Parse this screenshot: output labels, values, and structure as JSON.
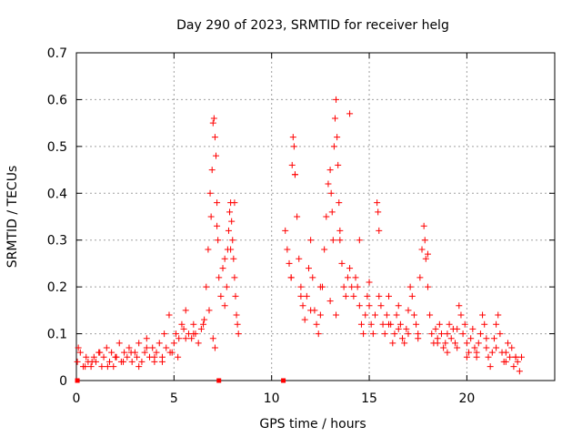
{
  "chart_data": {
    "type": "scatter",
    "title": "Day 290 of 2023, SRMTID for receiver helg",
    "xlabel": "GPS time / hours",
    "ylabel": "SRMTID / TECUs",
    "xlim": [
      0,
      24.5
    ],
    "ylim": [
      0,
      0.7
    ],
    "xticks": [
      0,
      5,
      10,
      15,
      20
    ],
    "yticks": [
      0,
      0.1,
      0.2,
      0.3,
      0.4,
      0.5,
      0.6,
      0.7
    ],
    "grid": true,
    "marker": "+",
    "color": "#ff0000",
    "series": [
      {
        "name": "SRMTID",
        "x": [
          0.05,
          0.2,
          0.35,
          0.5,
          0.6,
          0.75,
          0.9,
          1.0,
          1.15,
          1.3,
          1.4,
          1.55,
          1.7,
          1.8,
          1.9,
          2.05,
          2.2,
          2.3,
          2.45,
          2.6,
          2.7,
          2.85,
          3.0,
          3.1,
          3.2,
          3.35,
          3.5,
          3.6,
          3.75,
          3.9,
          4.0,
          4.1,
          4.25,
          4.4,
          4.5,
          4.6,
          4.75,
          4.9,
          5.0,
          5.1,
          5.25,
          5.4,
          5.5,
          5.6,
          5.75,
          5.9,
          6.0,
          6.1,
          6.25,
          6.4,
          6.55,
          6.65,
          6.75,
          6.85,
          6.9,
          6.95,
          7.0,
          7.05,
          7.1,
          7.15,
          7.2,
          7.25,
          7.3,
          7.4,
          7.5,
          7.6,
          7.7,
          7.75,
          7.8,
          7.85,
          7.9,
          7.95,
          8.0,
          8.05,
          8.1,
          8.15,
          8.2,
          8.25,
          8.3,
          10.7,
          10.8,
          10.9,
          11.0,
          11.05,
          11.1,
          11.15,
          11.2,
          11.3,
          11.4,
          11.5,
          11.6,
          11.7,
          11.8,
          11.9,
          12.0,
          12.1,
          12.2,
          12.3,
          12.4,
          12.5,
          12.6,
          12.7,
          12.8,
          12.9,
          13.0,
          13.05,
          13.1,
          13.15,
          13.2,
          13.25,
          13.3,
          13.35,
          13.4,
          13.45,
          13.5,
          13.6,
          13.7,
          13.8,
          13.9,
          14.0,
          14.1,
          14.2,
          14.3,
          14.4,
          14.5,
          14.6,
          14.7,
          14.8,
          14.9,
          15.0,
          15.1,
          15.2,
          15.3,
          15.4,
          15.45,
          15.5,
          15.6,
          15.7,
          15.8,
          15.9,
          16.0,
          16.1,
          16.2,
          16.3,
          16.4,
          16.5,
          16.6,
          16.7,
          16.8,
          16.9,
          17.0,
          17.1,
          17.2,
          17.3,
          17.4,
          17.5,
          17.6,
          17.7,
          17.8,
          17.85,
          17.9,
          18.0,
          18.1,
          18.2,
          18.3,
          18.4,
          18.5,
          18.6,
          18.7,
          18.8,
          18.9,
          19.0,
          19.1,
          19.2,
          19.3,
          19.4,
          19.5,
          19.6,
          19.7,
          19.8,
          19.9,
          20.0,
          20.1,
          20.2,
          20.3,
          20.4,
          20.5,
          20.6,
          20.7,
          20.8,
          20.9,
          21.0,
          21.1,
          21.2,
          21.3,
          21.4,
          21.5,
          21.6,
          21.7,
          21.8,
          21.9,
          22.0,
          22.1,
          22.2,
          22.3,
          22.4,
          22.5,
          22.6,
          22.7,
          22.8,
          0.1,
          0.45,
          0.8,
          1.2,
          1.6,
          2.0,
          2.4,
          2.8,
          3.2,
          3.6,
          4.0,
          4.4,
          4.8,
          5.2,
          5.6,
          6.0,
          6.5,
          6.8,
          7.0,
          7.1,
          7.2,
          7.6,
          7.9,
          8.1,
          11.0,
          11.2,
          11.5,
          12.0,
          12.5,
          13.0,
          13.3,
          13.5,
          14.0,
          14.5,
          15.0,
          15.5,
          16.0,
          16.5,
          17.0,
          17.5,
          18.0,
          18.5,
          19.0,
          19.5,
          20.0,
          20.5,
          21.0,
          21.5,
          22.0,
          22.5
        ],
        "y": [
          0.04,
          0.06,
          0.03,
          0.05,
          0.04,
          0.03,
          0.05,
          0.04,
          0.06,
          0.03,
          0.05,
          0.07,
          0.04,
          0.06,
          0.03,
          0.05,
          0.08,
          0.04,
          0.06,
          0.05,
          0.07,
          0.04,
          0.06,
          0.05,
          0.08,
          0.04,
          0.06,
          0.09,
          0.05,
          0.07,
          0.04,
          0.06,
          0.08,
          0.05,
          0.1,
          0.07,
          0.14,
          0.06,
          0.08,
          0.1,
          0.09,
          0.12,
          0.11,
          0.15,
          0.1,
          0.09,
          0.12,
          0.1,
          0.08,
          0.11,
          0.13,
          0.2,
          0.28,
          0.4,
          0.35,
          0.45,
          0.55,
          0.56,
          0.52,
          0.48,
          0.38,
          0.3,
          0.22,
          0.18,
          0.24,
          0.16,
          0.2,
          0.28,
          0.32,
          0.36,
          0.38,
          0.34,
          0.3,
          0.26,
          0.22,
          0.18,
          0.14,
          0.12,
          0.1,
          0.32,
          0.28,
          0.25,
          0.22,
          0.46,
          0.52,
          0.5,
          0.44,
          0.35,
          0.26,
          0.2,
          0.16,
          0.13,
          0.18,
          0.24,
          0.3,
          0.22,
          0.15,
          0.12,
          0.1,
          0.14,
          0.2,
          0.28,
          0.35,
          0.42,
          0.45,
          0.4,
          0.36,
          0.3,
          0.5,
          0.56,
          0.6,
          0.52,
          0.46,
          0.38,
          0.3,
          0.25,
          0.2,
          0.18,
          0.22,
          0.24,
          0.2,
          0.18,
          0.22,
          0.2,
          0.16,
          0.12,
          0.1,
          0.14,
          0.18,
          0.16,
          0.12,
          0.1,
          0.14,
          0.38,
          0.36,
          0.32,
          0.16,
          0.12,
          0.1,
          0.14,
          0.18,
          0.12,
          0.08,
          0.1,
          0.14,
          0.16,
          0.12,
          0.09,
          0.08,
          0.11,
          0.15,
          0.2,
          0.18,
          0.14,
          0.12,
          0.1,
          0.22,
          0.28,
          0.33,
          0.3,
          0.26,
          0.2,
          0.14,
          0.1,
          0.08,
          0.11,
          0.09,
          0.12,
          0.1,
          0.07,
          0.08,
          0.1,
          0.12,
          0.09,
          0.11,
          0.08,
          0.07,
          0.16,
          0.14,
          0.1,
          0.12,
          0.08,
          0.06,
          0.09,
          0.11,
          0.07,
          0.05,
          0.08,
          0.1,
          0.14,
          0.12,
          0.07,
          0.05,
          0.03,
          0.06,
          0.09,
          0.12,
          0.14,
          0.1,
          0.06,
          0.04,
          0.06,
          0.08,
          0.05,
          0.07,
          0.03,
          0.05,
          0.04,
          0.02,
          0.05,
          0.07,
          0.03,
          0.04,
          0.06,
          0.03,
          0.05,
          0.04,
          0.06,
          0.03,
          0.07,
          0.05,
          0.04,
          0.06,
          0.05,
          0.09,
          0.1,
          0.12,
          0.15,
          0.09,
          0.07,
          0.33,
          0.26,
          0.28,
          0.38,
          0.22,
          0.44,
          0.18,
          0.15,
          0.2,
          0.17,
          0.14,
          0.32,
          0.57,
          0.3,
          0.21,
          0.18,
          0.12,
          0.11,
          0.1,
          0.09,
          0.27,
          0.08,
          0.06,
          0.11,
          0.05,
          0.06,
          0.09,
          0.07,
          0.04,
          0.05
        ]
      }
    ],
    "edge_markers_x": [
      0.05,
      7.3,
      10.6
    ]
  }
}
